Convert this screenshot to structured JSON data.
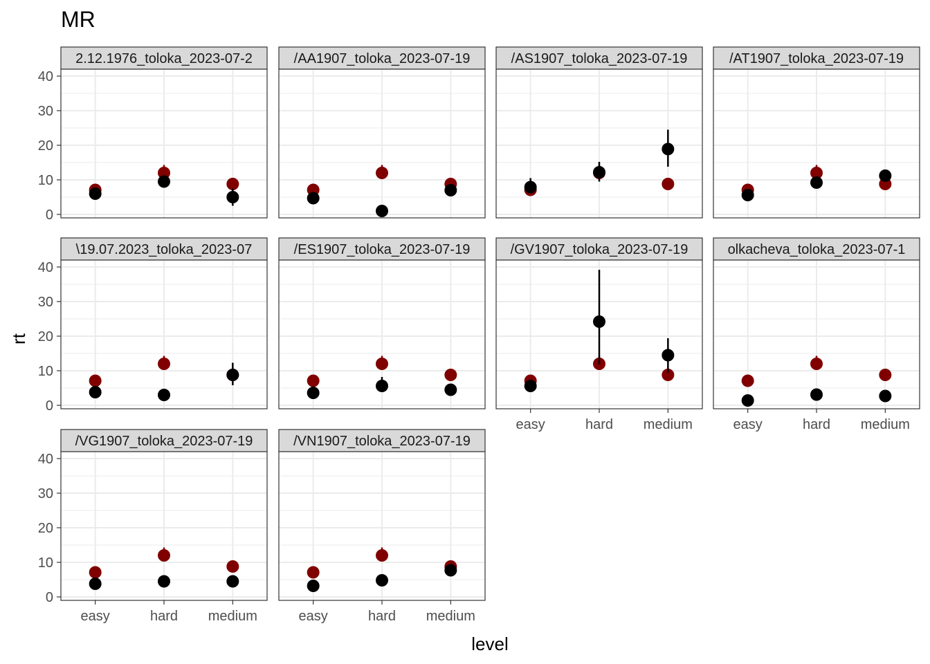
{
  "chart_data": {
    "type": "scatter",
    "title": "MR",
    "xlabel": "level",
    "ylabel": "rt",
    "categories": [
      "easy",
      "hard",
      "medium"
    ],
    "ylim": [
      -1,
      42
    ],
    "yticks": [
      0,
      10,
      20,
      30,
      40
    ],
    "grid": true,
    "legend": "none",
    "colors": {
      "reference": "#800000",
      "participant": "#000000",
      "strip_fill": "#d9d9d9",
      "panel_border": "#333333",
      "grid": "#ebebeb"
    },
    "reference_series": {
      "values": [
        7.1,
        12,
        8.8
      ],
      "error_low": [
        6.3,
        10.2,
        8.0
      ],
      "error_high": [
        7.9,
        14.3,
        9.6
      ]
    },
    "panels": [
      {
        "label": "2.12.1976_toloka_2023-07-2",
        "values": [
          6,
          9.5,
          5
        ],
        "error_low": [
          5.2,
          8.5,
          2.5
        ],
        "error_high": [
          6.8,
          10.5,
          7.5
        ]
      },
      {
        "label": "/AA1907_toloka_2023-07-19",
        "values": [
          4.7,
          1,
          7
        ],
        "error_low": [
          4.2,
          0.6,
          6.2
        ],
        "error_high": [
          5.2,
          1.4,
          7.8
        ]
      },
      {
        "label": "/AS1907_toloka_2023-07-19",
        "values": [
          7.9,
          12.2,
          18.9
        ],
        "error_low": [
          6.5,
          9.5,
          13.8
        ],
        "error_high": [
          10.5,
          15.2,
          24.5
        ]
      },
      {
        "label": "/AT1907_toloka_2023-07-19",
        "values": [
          5.6,
          9.2,
          11.2
        ],
        "error_low": [
          5.0,
          8.2,
          10.4
        ],
        "error_high": [
          6.2,
          10.2,
          12.0
        ]
      },
      {
        "label": "\\19.07.2023_toloka_2023-07",
        "values": [
          3.8,
          3,
          8.8
        ],
        "error_low": [
          3.3,
          2.5,
          5.8
        ],
        "error_high": [
          4.3,
          3.5,
          12.3
        ]
      },
      {
        "label": "/ES1907_toloka_2023-07-19",
        "values": [
          3.6,
          5.6,
          4.5
        ],
        "error_low": [
          3.1,
          4.6,
          4.0
        ],
        "error_high": [
          4.1,
          8.2,
          5.0
        ]
      },
      {
        "label": "/GV1907_toloka_2023-07-19",
        "values": [
          5.6,
          24.2,
          14.5
        ],
        "error_low": [
          5.0,
          11.8,
          9.5
        ],
        "error_high": [
          6.2,
          39.2,
          19.4
        ]
      },
      {
        "label": "olkacheva_toloka_2023-07-1",
        "values": [
          1.4,
          3.1,
          2.7
        ],
        "error_low": [
          1.0,
          2.6,
          2.2
        ],
        "error_high": [
          1.8,
          3.6,
          3.2
        ]
      },
      {
        "label": "/VG1907_toloka_2023-07-19",
        "values": [
          3.8,
          4.5,
          4.5
        ],
        "error_low": [
          3.3,
          4.0,
          4.0
        ],
        "error_high": [
          4.3,
          5.0,
          5.0
        ]
      },
      {
        "label": "/VN1907_toloka_2023-07-19",
        "values": [
          3.2,
          4.8,
          7.7
        ],
        "error_low": [
          2.7,
          4.2,
          7.0
        ],
        "error_high": [
          3.7,
          5.4,
          8.4
        ]
      }
    ]
  }
}
